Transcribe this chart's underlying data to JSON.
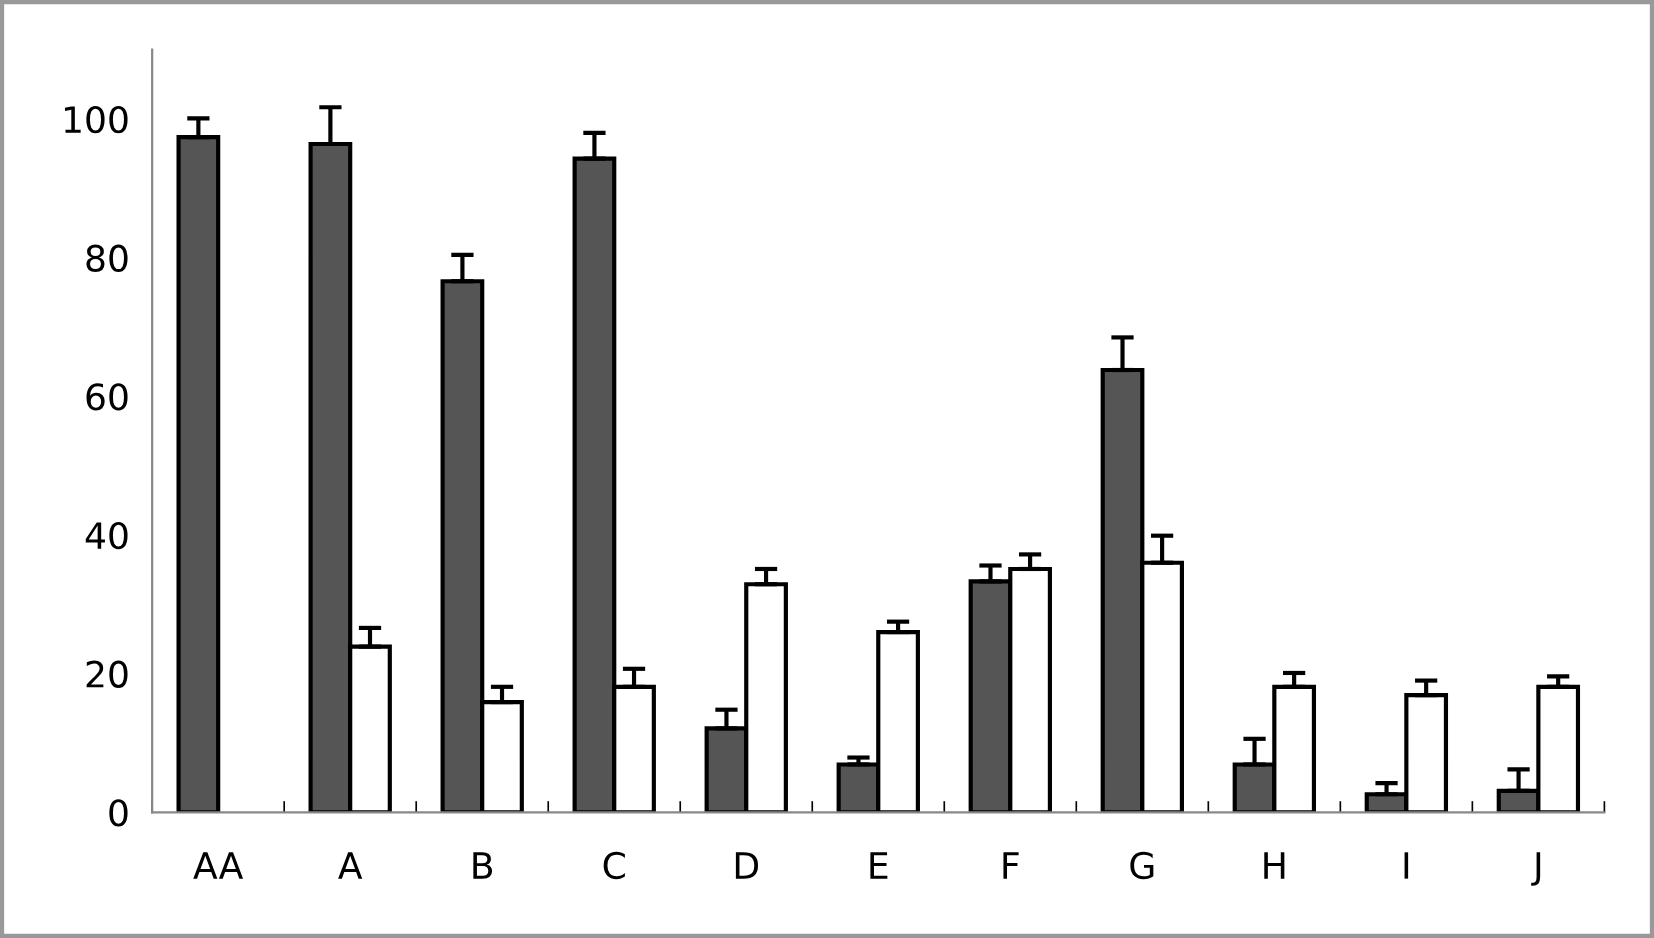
{
  "chart_data": {
    "type": "bar",
    "categories": [
      "AA",
      "A",
      "B",
      "C",
      "D",
      "E",
      "F",
      "G",
      "H",
      "I",
      "J"
    ],
    "series": [
      {
        "color": "#555555",
        "values": [
          97.4,
          96.4,
          76.6,
          94.3,
          12.1,
          6.9,
          33.3,
          63.8,
          6.9,
          2.6,
          3.1
        ],
        "errors": [
          [
            97.4,
            100.1
          ],
          [
            96.4,
            101.7
          ],
          [
            76.6,
            80.4
          ],
          [
            94.3,
            98.0
          ],
          [
            12.1,
            14.8
          ],
          [
            6.9,
            7.9
          ],
          [
            33.3,
            35.6
          ],
          [
            63.8,
            68.5
          ],
          [
            6.9,
            10.6
          ],
          [
            2.6,
            4.2
          ],
          [
            3.1,
            6.2
          ]
        ]
      },
      {
        "color": "#ffffff",
        "values": [
          null,
          23.9,
          15.9,
          18.1,
          32.9,
          26.0,
          35.1,
          36.0,
          18.1,
          16.9,
          18.1
        ],
        "errors": [
          null,
          [
            23.9,
            26.6
          ],
          [
            15.9,
            18.1
          ],
          [
            18.1,
            20.7
          ],
          [
            32.9,
            35.1
          ],
          [
            26.0,
            27.5
          ],
          [
            35.1,
            37.2
          ],
          [
            36.0,
            39.9
          ],
          [
            18.1,
            20.1
          ],
          [
            16.9,
            19.0
          ],
          [
            18.1,
            19.6
          ]
        ]
      }
    ],
    "ylim": [
      0,
      110
    ],
    "yticks": [
      0,
      20,
      40,
      60,
      80,
      100
    ],
    "grid": false,
    "legend": false
  }
}
